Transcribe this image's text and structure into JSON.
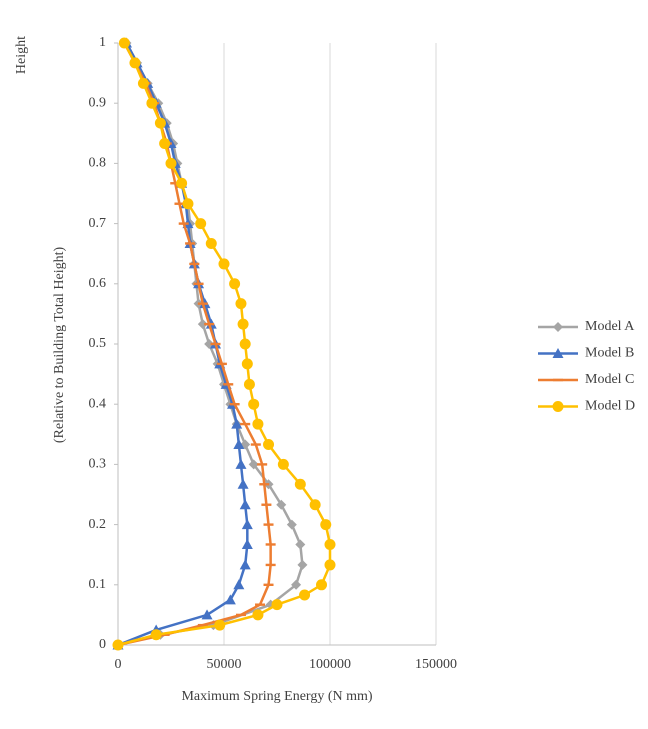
{
  "chart_data": {
    "type": "line",
    "xlabel": "Maximum Spring Energy (N mm)",
    "ylabel": [
      "Height",
      "(Relative to Building Total Height)"
    ],
    "xlim": [
      0,
      150000
    ],
    "xticks": [
      0,
      50000,
      100000,
      150000
    ],
    "ylim": [
      0,
      1
    ],
    "yticks": [
      0,
      0.1,
      0.2,
      0.3,
      0.4,
      0.5,
      0.6,
      0.7,
      0.8,
      0.9,
      1
    ],
    "grid": "x",
    "legend": "right",
    "series": [
      {
        "name": "Model A",
        "color": "#a5a5a5",
        "marker": "diamond",
        "x": [
          0,
          20000,
          45000,
          72000,
          84000,
          87000,
          86000,
          82000,
          77000,
          71000,
          64000,
          60000,
          56000,
          53000,
          50000,
          47000,
          43000,
          40000,
          38000,
          37000,
          36000,
          35000,
          34000,
          33000,
          30000,
          28000,
          26000,
          23000,
          19000,
          14000,
          9000,
          4000
        ],
        "values": [
          0,
          0.017,
          0.033,
          0.067,
          0.1,
          0.133,
          0.167,
          0.2,
          0.233,
          0.267,
          0.3,
          0.333,
          0.367,
          0.4,
          0.433,
          0.467,
          0.5,
          0.533,
          0.567,
          0.6,
          0.633,
          0.667,
          0.7,
          0.733,
          0.767,
          0.8,
          0.833,
          0.867,
          0.9,
          0.933,
          0.967,
          1
        ]
      },
      {
        "name": "Model B",
        "color": "#4472c4",
        "marker": "triangle",
        "x": [
          0,
          18000,
          42000,
          53000,
          57000,
          60000,
          61000,
          61000,
          60000,
          59000,
          58000,
          57000,
          56000,
          54000,
          51000,
          48000,
          46000,
          44000,
          41000,
          38000,
          36000,
          34000,
          33000,
          32000,
          30000,
          27000,
          25000,
          22000,
          18000,
          14000,
          9000,
          4000
        ],
        "values": [
          0,
          0.025,
          0.05,
          0.075,
          0.1,
          0.133,
          0.167,
          0.2,
          0.233,
          0.267,
          0.3,
          0.333,
          0.367,
          0.4,
          0.433,
          0.467,
          0.5,
          0.533,
          0.567,
          0.6,
          0.633,
          0.667,
          0.7,
          0.733,
          0.767,
          0.8,
          0.833,
          0.867,
          0.9,
          0.933,
          0.967,
          1
        ]
      },
      {
        "name": "Model C",
        "color": "#ed7d31",
        "marker": "dash",
        "x": [
          0,
          22000,
          40000,
          58000,
          67000,
          71000,
          72000,
          72000,
          71000,
          70000,
          69000,
          68000,
          65000,
          60000,
          55000,
          52000,
          49000,
          46000,
          43000,
          40000,
          38000,
          36000,
          34000,
          31000,
          29000,
          27000,
          25000,
          23000,
          20000,
          17000,
          13000,
          8000,
          3000
        ],
        "values": [
          0,
          0.017,
          0.033,
          0.05,
          0.067,
          0.1,
          0.133,
          0.167,
          0.2,
          0.233,
          0.267,
          0.3,
          0.333,
          0.367,
          0.4,
          0.433,
          0.467,
          0.5,
          0.533,
          0.567,
          0.6,
          0.633,
          0.667,
          0.7,
          0.733,
          0.767,
          0.8,
          0.833,
          0.867,
          0.9,
          0.933,
          0.967,
          1
        ]
      },
      {
        "name": "Model D",
        "color": "#ffc000",
        "marker": "circle",
        "x": [
          0,
          18000,
          48000,
          66000,
          75000,
          88000,
          96000,
          100000,
          100000,
          98000,
          93000,
          86000,
          78000,
          71000,
          66000,
          64000,
          62000,
          61000,
          60000,
          59000,
          58000,
          55000,
          50000,
          44000,
          39000,
          33000,
          30000,
          25000,
          22000,
          20000,
          16000,
          12000,
          8000,
          3000
        ],
        "values": [
          0,
          0.017,
          0.033,
          0.05,
          0.067,
          0.083,
          0.1,
          0.133,
          0.167,
          0.2,
          0.233,
          0.267,
          0.3,
          0.333,
          0.367,
          0.4,
          0.433,
          0.467,
          0.5,
          0.533,
          0.567,
          0.6,
          0.633,
          0.667,
          0.7,
          0.733,
          0.767,
          0.8,
          0.833,
          0.867,
          0.9,
          0.933,
          0.967,
          1
        ]
      }
    ]
  }
}
